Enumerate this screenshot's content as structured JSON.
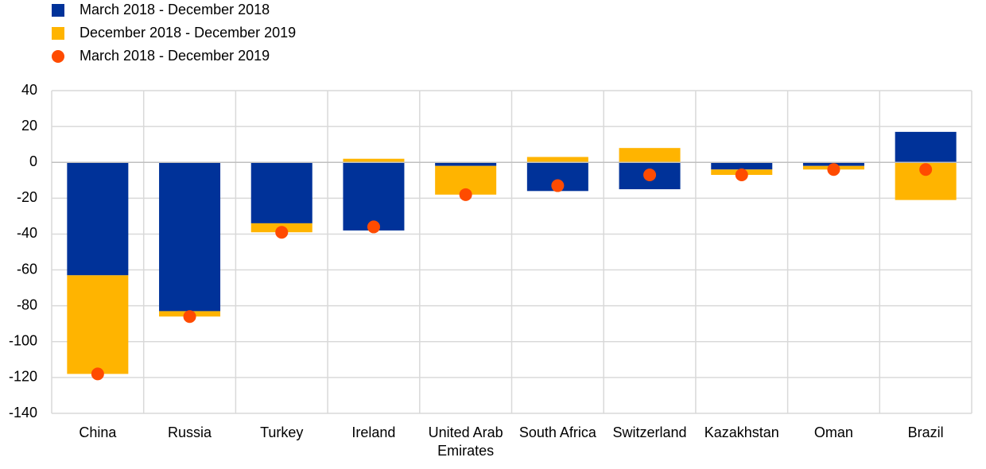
{
  "chart_data": {
    "type": "bar",
    "stacked": true,
    "categories": [
      "China",
      "Russia",
      "Turkey",
      "Ireland",
      "United Arab Emirates",
      "South Africa",
      "Switzerland",
      "Kazakhstan",
      "Oman",
      "Brazil"
    ],
    "series": [
      {
        "name": "March 2018 - December 2018",
        "color": "#003299",
        "kind": "bar",
        "values": [
          -63,
          -83,
          -34,
          -38,
          -2,
          -16,
          -15,
          -4,
          -2,
          17
        ]
      },
      {
        "name": "December 2018 - December 2019",
        "color": "#ffb400",
        "kind": "bar",
        "values": [
          -55,
          -3,
          -5,
          2,
          -16,
          3,
          8,
          -3,
          -2,
          -21
        ]
      },
      {
        "name": "March 2018 - December 2019",
        "color": "#ff4b00",
        "kind": "dot",
        "values": [
          -118,
          -86,
          -39,
          -36,
          -18,
          -13,
          -7,
          -7,
          -4,
          -4
        ]
      }
    ],
    "ylim": [
      -140,
      40
    ],
    "yticks": [
      -140,
      -120,
      -100,
      -80,
      -60,
      -40,
      -20,
      0,
      20,
      40
    ],
    "grid": true
  }
}
